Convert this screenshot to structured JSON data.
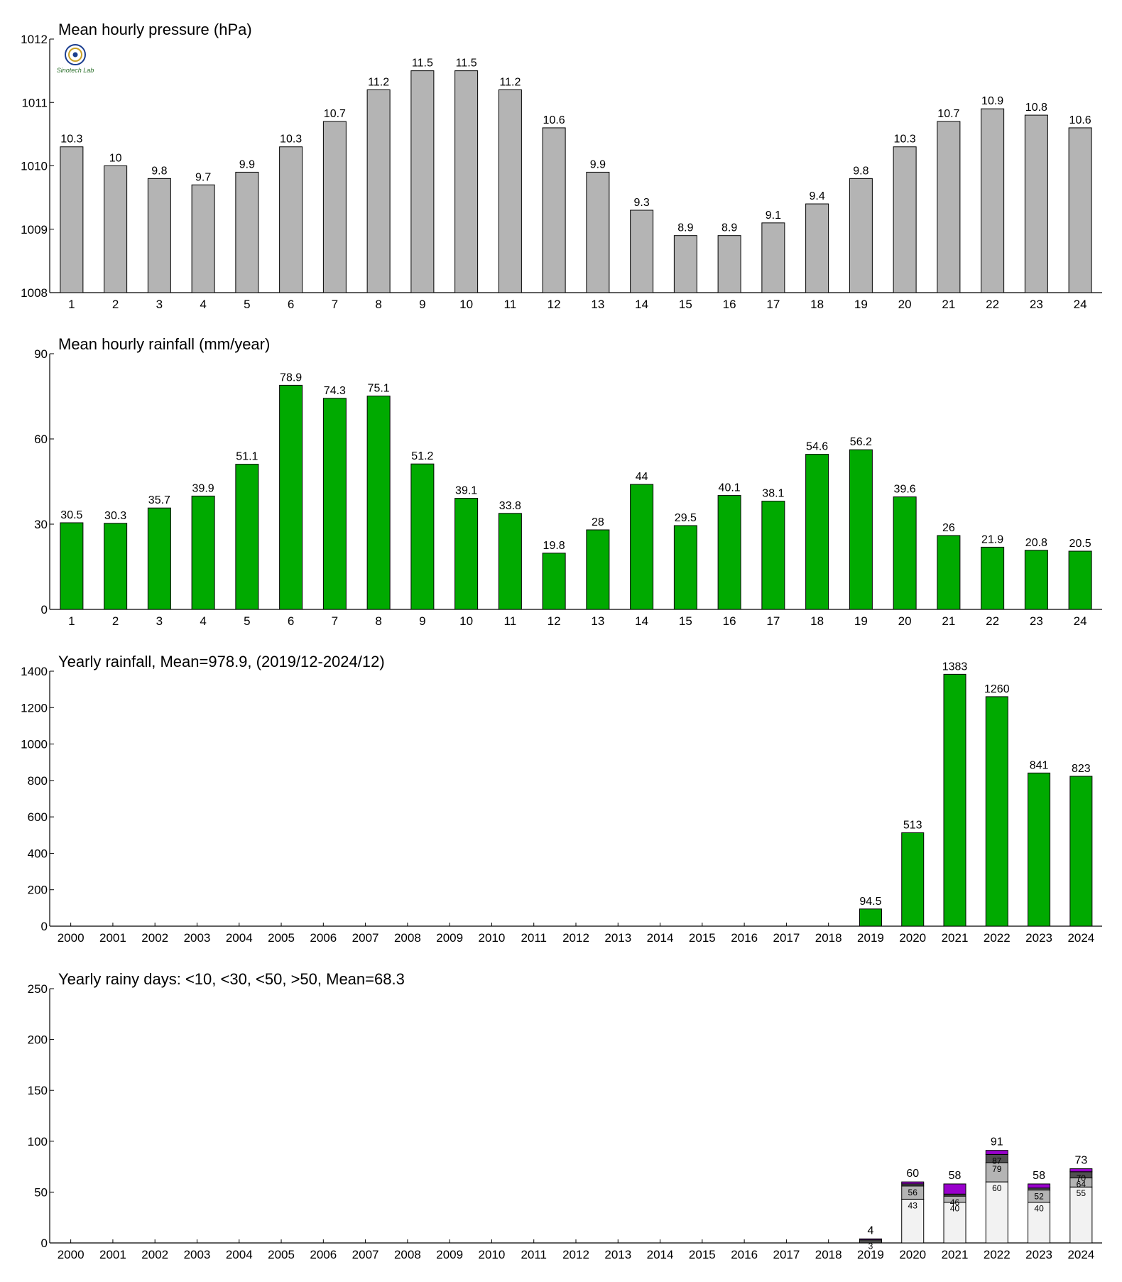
{
  "logo_text": "Sinotech Lab",
  "colors": {
    "pressure_bar": "#b4b4b4",
    "rainfall_bar": "#00aa00",
    "days_lt10": "#f2f2f2",
    "days_lt30": "#b4b4b4",
    "days_lt50": "#505050",
    "days_gt50": "#9900cc"
  },
  "chart_data": [
    {
      "id": "pressure",
      "type": "bar",
      "title": "Mean hourly pressure (hPa)",
      "categories": [
        "1",
        "2",
        "3",
        "4",
        "5",
        "6",
        "7",
        "8",
        "9",
        "10",
        "11",
        "12",
        "13",
        "14",
        "15",
        "16",
        "17",
        "18",
        "19",
        "20",
        "21",
        "22",
        "23",
        "24"
      ],
      "values": [
        1010.3,
        1010.0,
        1009.8,
        1009.7,
        1009.9,
        1010.3,
        1010.7,
        1011.2,
        1011.5,
        1011.5,
        1011.2,
        1010.6,
        1009.9,
        1009.3,
        1008.9,
        1008.9,
        1009.1,
        1009.4,
        1009.8,
        1010.3,
        1010.7,
        1010.9,
        1010.8,
        1010.6
      ],
      "labels": [
        "10.3",
        "10",
        "9.8",
        "9.7",
        "9.9",
        "10.3",
        "10.7",
        "11.2",
        "11.5",
        "11.5",
        "11.2",
        "10.6",
        "9.9",
        "9.3",
        "8.9",
        "8.9",
        "9.1",
        "9.4",
        "9.8",
        "10.3",
        "10.7",
        "10.9",
        "10.8",
        "10.6"
      ],
      "ylim": [
        1008,
        1012
      ],
      "yticks": [
        "1008",
        "1009",
        "1010",
        "1011",
        "1012"
      ],
      "ytick_values": [
        1008,
        1009,
        1010,
        1011,
        1012
      ]
    },
    {
      "id": "hourly_rain",
      "type": "bar",
      "title": "Mean hourly rainfall (mm/year)",
      "categories": [
        "1",
        "2",
        "3",
        "4",
        "5",
        "6",
        "7",
        "8",
        "9",
        "10",
        "11",
        "12",
        "13",
        "14",
        "15",
        "16",
        "17",
        "18",
        "19",
        "20",
        "21",
        "22",
        "23",
        "24"
      ],
      "values": [
        30.5,
        30.3,
        35.7,
        39.9,
        51.1,
        78.9,
        74.3,
        75.1,
        51.2,
        39.1,
        33.8,
        19.8,
        28,
        44,
        29.5,
        40.1,
        38.1,
        54.6,
        56.2,
        39.6,
        26,
        21.9,
        20.8,
        20.5
      ],
      "labels": [
        "30.5",
        "30.3",
        "35.7",
        "39.9",
        "51.1",
        "78.9",
        "74.3",
        "75.1",
        "51.2",
        "39.1",
        "33.8",
        "19.8",
        "28",
        "44",
        "29.5",
        "40.1",
        "38.1",
        "54.6",
        "56.2",
        "39.6",
        "26",
        "21.9",
        "20.8",
        "20.5"
      ],
      "ylim": [
        0,
        90
      ],
      "yticks": [
        "0",
        "30",
        "60",
        "90"
      ],
      "ytick_values": [
        0,
        30,
        60,
        90
      ]
    },
    {
      "id": "yearly_rain",
      "type": "bar",
      "title": "Yearly rainfall, Mean=978.9, (2019/12-2024/12)",
      "categories": [
        "2000",
        "2001",
        "2002",
        "2003",
        "2004",
        "2005",
        "2006",
        "2007",
        "2008",
        "2009",
        "2010",
        "2011",
        "2012",
        "2013",
        "2014",
        "2015",
        "2016",
        "2017",
        "2018",
        "2019",
        "2020",
        "2021",
        "2022",
        "2023",
        "2024"
      ],
      "values": [
        null,
        null,
        null,
        null,
        null,
        null,
        null,
        null,
        null,
        null,
        null,
        null,
        null,
        null,
        null,
        null,
        null,
        null,
        null,
        94.5,
        513,
        1383,
        1260,
        841,
        823
      ],
      "labels": [
        "",
        "",
        "",
        "",
        "",
        "",
        "",
        "",
        "",
        "",
        "",
        "",
        "",
        "",
        "",
        "",
        "",
        "",
        "",
        "94.5",
        "513",
        "1383",
        "1260",
        "841",
        "823"
      ],
      "ylim": [
        0,
        1400
      ],
      "yticks": [
        "0",
        "200",
        "400",
        "600",
        "800",
        "1000",
        "1200",
        "1400"
      ],
      "ytick_values": [
        0,
        200,
        400,
        600,
        800,
        1000,
        1200,
        1400
      ]
    },
    {
      "id": "rainy_days",
      "type": "stacked_bar",
      "title": "Yearly rainy days: <10, <30, <50, >50, Mean=68.3",
      "categories": [
        "2000",
        "2001",
        "2002",
        "2003",
        "2004",
        "2005",
        "2006",
        "2007",
        "2008",
        "2009",
        "2010",
        "2011",
        "2012",
        "2013",
        "2014",
        "2015",
        "2016",
        "2017",
        "2018",
        "2019",
        "2020",
        "2021",
        "2022",
        "2023",
        "2024"
      ],
      "cumulative": [
        null,
        null,
        null,
        null,
        null,
        null,
        null,
        null,
        null,
        null,
        null,
        null,
        null,
        null,
        null,
        null,
        null,
        null,
        null,
        [
          0,
          0,
          3,
          4
        ],
        [
          43,
          56,
          58,
          60
        ],
        [
          40,
          46,
          48,
          58
        ],
        [
          60,
          79,
          87,
          91
        ],
        [
          40,
          52,
          54,
          58
        ],
        [
          55,
          64,
          70,
          73
        ]
      ],
      "segment_labels": [
        null,
        null,
        null,
        null,
        null,
        null,
        null,
        null,
        null,
        null,
        null,
        null,
        null,
        null,
        null,
        null,
        null,
        null,
        null,
        [
          "",
          "",
          "3",
          ""
        ],
        [
          "43",
          "56",
          "",
          ""
        ],
        [
          "40",
          "46",
          "",
          ""
        ],
        [
          "60",
          "79",
          "87",
          ""
        ],
        [
          "40",
          "52",
          "",
          ""
        ],
        [
          "55",
          "64",
          "70",
          ""
        ]
      ],
      "totals": [
        "",
        "",
        "",
        "",
        "",
        "",
        "",
        "",
        "",
        "",
        "",
        "",
        "",
        "",
        "",
        "",
        "",
        "",
        "",
        "4",
        "60",
        "58",
        "91",
        "58",
        "73"
      ],
      "ylim": [
        0,
        250
      ],
      "yticks": [
        "0",
        "50",
        "100",
        "150",
        "200",
        "250"
      ],
      "ytick_values": [
        0,
        50,
        100,
        150,
        200,
        250
      ]
    }
  ]
}
